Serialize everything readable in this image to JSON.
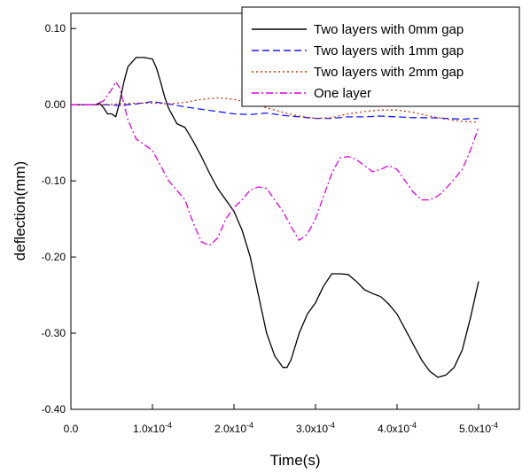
{
  "chart_data": {
    "type": "line",
    "xlabel": "Time(s)",
    "ylabel": "deflection(mm)",
    "xlim": [
      0,
      0.00055
    ],
    "ylim": [
      -0.4,
      0.12
    ],
    "x_ticks": [
      {
        "value": 0,
        "mantissa": "0.0",
        "exponent": ""
      },
      {
        "value": 0.0001,
        "mantissa": "1.0x10",
        "exponent": "-4"
      },
      {
        "value": 0.0002,
        "mantissa": "2.0x10",
        "exponent": "-4"
      },
      {
        "value": 0.0003,
        "mantissa": "3.0x10",
        "exponent": "-4"
      },
      {
        "value": 0.0004,
        "mantissa": "4.0x10",
        "exponent": "-4"
      },
      {
        "value": 0.0005,
        "mantissa": "5.0x10",
        "exponent": "-4"
      }
    ],
    "y_ticks": [
      {
        "value": 0.1,
        "label": "0.10"
      },
      {
        "value": 0.0,
        "label": "0.00"
      },
      {
        "value": -0.1,
        "label": "-0.10"
      },
      {
        "value": -0.2,
        "label": "-0.20"
      },
      {
        "value": -0.3,
        "label": "-0.30"
      },
      {
        "value": -0.4,
        "label": "-0.40"
      }
    ],
    "grid": false,
    "legend_position": "top-right",
    "series": [
      {
        "name": "Two layers with 0mm gap",
        "color": "#000000",
        "dash": "solid",
        "x": [
          0,
          3e-05,
          3.5e-05,
          4e-05,
          4.5e-05,
          5e-05,
          5.5e-05,
          6e-05,
          6.5e-05,
          7e-05,
          8e-05,
          9e-05,
          0.0001,
          0.000105,
          0.00011,
          0.000115,
          0.00012,
          0.00013,
          0.00014,
          0.00015,
          0.00016,
          0.00017,
          0.00018,
          0.00019,
          0.0002,
          0.00021,
          0.00022,
          0.00023,
          0.00024,
          0.00025,
          0.00026,
          0.000265,
          0.00027,
          0.00028,
          0.00029,
          0.0003,
          0.00031,
          0.00032,
          0.00033,
          0.00034,
          0.00035,
          0.00036,
          0.00037,
          0.00038,
          0.00039,
          0.0004,
          0.00041,
          0.00042,
          0.00043,
          0.00044,
          0.00045,
          0.00046,
          0.00047,
          0.00048,
          0.00049,
          0.0005
        ],
        "y": [
          0,
          0,
          0.002,
          -0.004,
          -0.012,
          -0.012,
          -0.016,
          0.004,
          0.03,
          0.05,
          0.062,
          0.062,
          0.06,
          0.048,
          0.03,
          0.01,
          -0.005,
          -0.025,
          -0.03,
          -0.048,
          -0.068,
          -0.09,
          -0.11,
          -0.125,
          -0.14,
          -0.165,
          -0.2,
          -0.25,
          -0.3,
          -0.33,
          -0.345,
          -0.345,
          -0.335,
          -0.3,
          -0.275,
          -0.26,
          -0.238,
          -0.222,
          -0.222,
          -0.223,
          -0.232,
          -0.243,
          -0.248,
          -0.252,
          -0.262,
          -0.275,
          -0.295,
          -0.315,
          -0.335,
          -0.35,
          -0.358,
          -0.355,
          -0.345,
          -0.322,
          -0.28,
          -0.232
        ]
      },
      {
        "name": "Two layers with 1mm gap",
        "color": "#1a1aff",
        "dash": "dashed",
        "x": [
          0,
          4e-05,
          6e-05,
          8e-05,
          0.0001,
          0.00012,
          0.00014,
          0.00016,
          0.00018,
          0.0002,
          0.00022,
          0.00024,
          0.00026,
          0.00028,
          0.0003,
          0.00032,
          0.00034,
          0.00036,
          0.00038,
          0.0004,
          0.00042,
          0.00044,
          0.00046,
          0.00048,
          0.0005
        ],
        "y": [
          0,
          0,
          -0.001,
          0.001,
          0.004,
          0.001,
          -0.003,
          -0.006,
          -0.009,
          -0.012,
          -0.013,
          -0.011,
          -0.014,
          -0.016,
          -0.018,
          -0.018,
          -0.016,
          -0.016,
          -0.015,
          -0.016,
          -0.017,
          -0.017,
          -0.018,
          -0.019,
          -0.018
        ]
      },
      {
        "name": "Two layers with 2mm gap",
        "color": "#cc3300",
        "dash": "dotted",
        "x": [
          0,
          4e-05,
          6e-05,
          8e-05,
          0.0001,
          0.00012,
          0.00014,
          0.00016,
          0.00018,
          0.0002,
          0.00022,
          0.00024,
          0.00026,
          0.00028,
          0.0003,
          0.00032,
          0.00034,
          0.00036,
          0.00038,
          0.0004,
          0.00042,
          0.00044,
          0.00046,
          0.00048,
          0.0005
        ],
        "y": [
          0,
          0,
          0.001,
          0.002,
          0.002,
          0.001,
          0.003,
          0.007,
          0.009,
          0.007,
          0.002,
          -0.004,
          -0.01,
          -0.015,
          -0.018,
          -0.017,
          -0.012,
          -0.009,
          -0.007,
          -0.007,
          -0.01,
          -0.015,
          -0.019,
          -0.022,
          -0.023
        ]
      },
      {
        "name": "One layer",
        "color": "#e000e0",
        "dash": "dashdot",
        "x": [
          0,
          3e-05,
          4e-05,
          5e-05,
          5.5e-05,
          6e-05,
          7e-05,
          8e-05,
          0.0001,
          0.00012,
          0.00014,
          0.00015,
          0.00016,
          0.00017,
          0.00018,
          0.00019,
          0.0002,
          0.00021,
          0.00022,
          0.00023,
          0.00024,
          0.00025,
          0.00026,
          0.00027,
          0.00028,
          0.00029,
          0.0003,
          0.00031,
          0.00032,
          0.00033,
          0.00034,
          0.00035,
          0.00036,
          0.00037,
          0.00038,
          0.00039,
          0.0004,
          0.00041,
          0.00042,
          0.00043,
          0.00044,
          0.00045,
          0.00046,
          0.00047,
          0.00048,
          0.00049,
          0.0005
        ],
        "y": [
          0,
          0,
          0.005,
          0.02,
          0.03,
          0.022,
          -0.02,
          -0.045,
          -0.06,
          -0.1,
          -0.125,
          -0.155,
          -0.18,
          -0.185,
          -0.175,
          -0.15,
          -0.135,
          -0.125,
          -0.112,
          -0.108,
          -0.11,
          -0.125,
          -0.14,
          -0.16,
          -0.178,
          -0.17,
          -0.15,
          -0.12,
          -0.09,
          -0.07,
          -0.068,
          -0.072,
          -0.08,
          -0.088,
          -0.085,
          -0.08,
          -0.085,
          -0.1,
          -0.115,
          -0.125,
          -0.125,
          -0.12,
          -0.11,
          -0.098,
          -0.085,
          -0.06,
          -0.03
        ]
      }
    ]
  }
}
